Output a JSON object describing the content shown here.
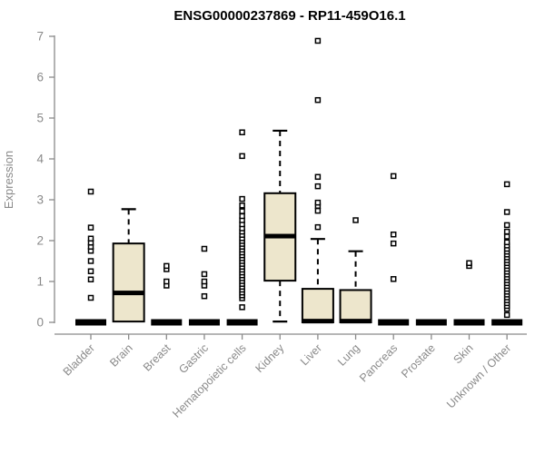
{
  "chart_data": {
    "type": "boxplot",
    "title": "ENSG00000237869 - RP11-459O16.1",
    "ylabel": "Expression",
    "xlabel": "",
    "ylim": [
      0,
      7
    ],
    "yticks": [
      0,
      1,
      2,
      3,
      4,
      5,
      6,
      7
    ],
    "grid": false,
    "legend": false,
    "colors": {
      "box_fill": "#ede6cc",
      "box_border": "#000000",
      "median": "#000000",
      "whisker": "#000000",
      "outlier_stroke": "#000000",
      "outlier_fill": "#ffffff",
      "axis_line": "#8a8a8a",
      "axis_text": "#8a8a8a",
      "title": "#000000",
      "background": "#ffffff"
    },
    "categories": [
      "Bladder",
      "Brain",
      "Breast",
      "Gastric",
      "Hematopoietic cells",
      "Kidney",
      "Liver",
      "Lung",
      "Pancreas",
      "Prostate",
      "Skin",
      "Unknown / Other"
    ],
    "series": [
      {
        "category": "Bladder",
        "q1": 0,
        "median": 0,
        "q3": 0,
        "whisker_low": 0,
        "whisker_high": 0,
        "outliers": [
          0.6,
          1.05,
          1.25,
          1.5,
          1.75,
          1.85,
          1.95,
          2.05,
          2.32,
          3.2
        ]
      },
      {
        "category": "Brain",
        "q1": 0.02,
        "median": 0.72,
        "q3": 1.93,
        "whisker_low": 0.02,
        "whisker_high": 2.77,
        "outliers": []
      },
      {
        "category": "Breast",
        "q1": 0,
        "median": 0,
        "q3": 0,
        "whisker_low": 0,
        "whisker_high": 0,
        "outliers": [
          0.9,
          1.0,
          1.3,
          1.38
        ]
      },
      {
        "category": "Gastric",
        "q1": 0,
        "median": 0,
        "q3": 0,
        "whisker_low": 0,
        "whisker_high": 0,
        "outliers": [
          0.64,
          0.9,
          1.0,
          1.18,
          1.8
        ]
      },
      {
        "category": "Hematopoietic cells",
        "q1": 0,
        "median": 0,
        "q3": 0,
        "whisker_low": 0,
        "whisker_high": 0,
        "outliers": [
          0.37,
          0.59,
          0.66,
          0.73,
          0.8,
          0.87,
          0.94,
          1.01,
          1.08,
          1.15,
          1.22,
          1.29,
          1.36,
          1.43,
          1.5,
          1.57,
          1.64,
          1.71,
          1.78,
          1.85,
          1.92,
          1.99,
          2.06,
          2.14,
          2.22,
          2.3,
          2.4,
          2.5,
          2.6,
          2.72,
          2.86,
          3.02,
          4.07,
          4.65
        ]
      },
      {
        "category": "Kidney",
        "q1": 1.02,
        "median": 2.11,
        "q3": 3.16,
        "whisker_low": 0.02,
        "whisker_high": 4.69,
        "outliers": []
      },
      {
        "category": "Liver",
        "q1": 0,
        "median": 0.03,
        "q3": 0.82,
        "whisker_low": 0,
        "whisker_high": 2.04,
        "outliers": [
          2.33,
          2.73,
          2.85,
          2.93,
          3.33,
          3.56,
          5.44,
          6.89
        ]
      },
      {
        "category": "Lung",
        "q1": 0,
        "median": 0.03,
        "q3": 0.79,
        "whisker_low": 0,
        "whisker_high": 1.74,
        "outliers": [
          2.5
        ]
      },
      {
        "category": "Pancreas",
        "q1": 0,
        "median": 0,
        "q3": 0,
        "whisker_low": 0,
        "whisker_high": 0,
        "outliers": [
          1.06,
          1.93,
          2.15,
          3.58
        ]
      },
      {
        "category": "Prostate",
        "q1": 0,
        "median": 0,
        "q3": 0,
        "whisker_low": 0,
        "whisker_high": 0,
        "outliers": []
      },
      {
        "category": "Skin",
        "q1": 0,
        "median": 0,
        "q3": 0,
        "whisker_low": 0,
        "whisker_high": 0,
        "outliers": [
          1.38,
          1.45
        ]
      },
      {
        "category": "Unknown / Other",
        "q1": 0,
        "median": 0,
        "q3": 0,
        "whisker_low": 0,
        "whisker_high": 0,
        "outliers": [
          0.18,
          0.33,
          0.4,
          0.47,
          0.54,
          0.61,
          0.68,
          0.75,
          0.82,
          0.89,
          0.96,
          1.03,
          1.1,
          1.17,
          1.24,
          1.31,
          1.38,
          1.45,
          1.52,
          1.59,
          1.66,
          1.73,
          1.8,
          1.88,
          1.96,
          2.1,
          2.22,
          2.38,
          2.7,
          3.38
        ]
      }
    ]
  }
}
